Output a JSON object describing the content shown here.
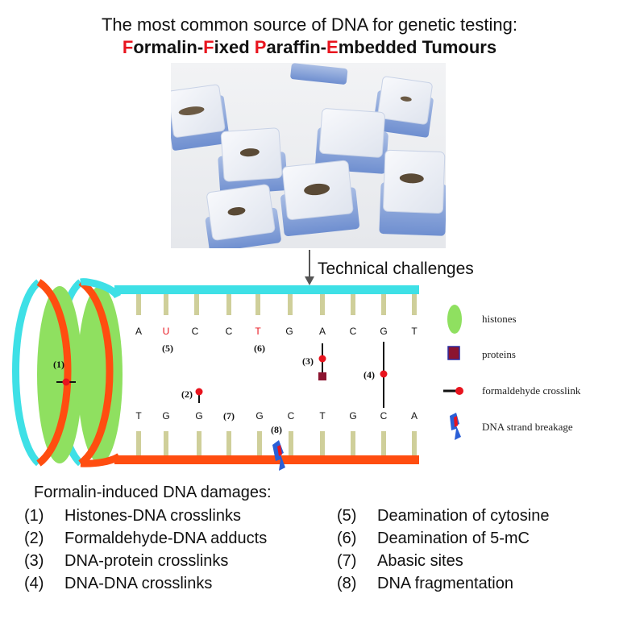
{
  "title": {
    "line1": "The most common source of DNA for genetic testing:",
    "line2_parts": [
      {
        "text": "F",
        "highlight": true
      },
      {
        "text": "ormalin-",
        "highlight": false
      },
      {
        "text": "F",
        "highlight": true
      },
      {
        "text": "ixed ",
        "highlight": false
      },
      {
        "text": "P",
        "highlight": true
      },
      {
        "text": "araffin-",
        "highlight": false
      },
      {
        "text": "E",
        "highlight": true
      },
      {
        "text": "mbedded Tumours",
        "highlight": false
      }
    ]
  },
  "challenge_label": "Technical challenges",
  "dna": {
    "top_bases": [
      "A",
      "U",
      "C",
      "C",
      "T",
      "G",
      "A",
      "C",
      "G",
      "T"
    ],
    "bottom_bases": [
      "T",
      "G",
      "G",
      "(7)",
      "G",
      "C",
      "T",
      "G",
      "C",
      "A"
    ],
    "markers": {
      "m1": "(1)",
      "m2": "(2)",
      "m3": "(3)",
      "m4": "(4)",
      "m5": "(5)",
      "m6": "(6)",
      "m8": "(8)"
    }
  },
  "legend": [
    {
      "key": "histones",
      "label": "histones"
    },
    {
      "key": "proteins",
      "label": "proteins"
    },
    {
      "key": "crosslink",
      "label": "formaldehyde crosslink"
    },
    {
      "key": "breakage",
      "label": "DNA strand breakage"
    }
  ],
  "damages": {
    "title": "Formalin-induced DNA damages:",
    "left": [
      {
        "num": "(1)",
        "text": "Histones-DNA crosslinks"
      },
      {
        "num": "(2)",
        "text": "Formaldehyde-DNA adducts"
      },
      {
        "num": "(3)",
        "text": "DNA-protein crosslinks"
      },
      {
        "num": "(4)",
        "text": "DNA-DNA crosslinks"
      }
    ],
    "right": [
      {
        "num": "(5)",
        "text": "Deamination of cytosine"
      },
      {
        "num": "(6)",
        "text": "Deamination of 5-mC"
      },
      {
        "num": "(7)",
        "text": "Abasic sites"
      },
      {
        "num": "(8)",
        "text": "DNA fragmentation"
      }
    ]
  },
  "colors": {
    "highlight_red": "#e8141e",
    "strand_cyan": "#3ee0e6",
    "strand_orange": "#ff4d10",
    "histone_green": "#8fe060",
    "base_tick": "#cfcf9a",
    "protein_box": "#8b1430",
    "crosslink_dot": "#e8141e"
  }
}
